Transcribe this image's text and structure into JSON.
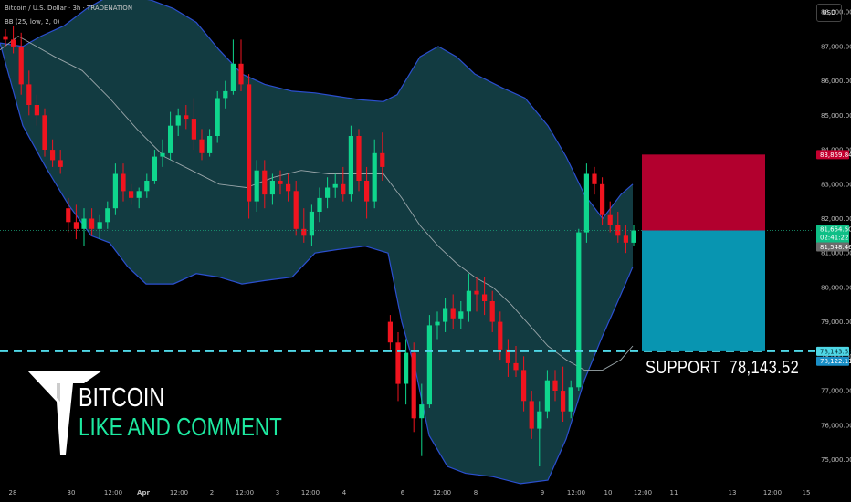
{
  "header": {
    "title": "Bitcoin / U.S. Dollar · 3h · TRADENATION",
    "indicator": "BB (25, low, 2, 0)"
  },
  "currency_button": "USD",
  "chart_data": {
    "type": "candlestick",
    "y_ticks": [
      75000,
      76000,
      77000,
      78000,
      79000,
      80000,
      81000,
      82000,
      83000,
      84000,
      85000,
      86000,
      87000,
      88000
    ],
    "y_tick_labels": [
      "75,000.00",
      "76,000.00",
      "77,000.00",
      "78,000.00",
      "79,000.00",
      "80,000.00",
      "81,000.00",
      "82,000.00",
      "83,000.00",
      "84,000.00",
      "85,000.00",
      "86,000.00",
      "87,000.00",
      "88,000.00"
    ],
    "ylim": [
      74350,
      88350
    ],
    "x_tick_labels": [
      "28",
      "30",
      "12:00",
      "Apr",
      "12:00",
      "2",
      "12:00",
      "3",
      "12:00",
      "4",
      "6",
      "12:00",
      "8",
      "9",
      "12:00",
      "10",
      "12:00",
      "11",
      "13",
      "12:00",
      "15"
    ],
    "candles": [
      [
        87300,
        87500,
        87000,
        87200
      ],
      [
        87200,
        87600,
        86800,
        87000
      ],
      [
        87000,
        87400,
        85600,
        85900
      ],
      [
        85900,
        86300,
        85000,
        85300
      ],
      [
        85300,
        85600,
        84700,
        85000
      ],
      [
        85000,
        85200,
        83800,
        84000
      ],
      [
        84000,
        84300,
        83500,
        83700
      ],
      [
        83700,
        84000,
        83300,
        83500
      ],
      [
        82300,
        82600,
        81600,
        81900
      ],
      [
        81900,
        82400,
        81400,
        81700
      ],
      [
        81700,
        82300,
        81200,
        82000
      ],
      [
        82000,
        82300,
        81500,
        81700
      ],
      [
        81700,
        82100,
        81400,
        81900
      ],
      [
        81900,
        82500,
        81700,
        82300
      ],
      [
        82300,
        83600,
        82100,
        83300
      ],
      [
        83300,
        83600,
        82500,
        82800
      ],
      [
        82800,
        83000,
        82400,
        82600
      ],
      [
        82600,
        82900,
        82300,
        82800
      ],
      [
        82800,
        83300,
        82600,
        83100
      ],
      [
        83100,
        84000,
        83000,
        83800
      ],
      [
        83800,
        84300,
        83500,
        83900
      ],
      [
        83900,
        85100,
        83700,
        84700
      ],
      [
        84700,
        85200,
        84400,
        85000
      ],
      [
        85000,
        85300,
        84600,
        84900
      ],
      [
        84900,
        85500,
        84000,
        84300
      ],
      [
        84300,
        84600,
        83700,
        83900
      ],
      [
        83900,
        84600,
        83800,
        84400
      ],
      [
        84400,
        85700,
        84200,
        85500
      ],
      [
        85500,
        86000,
        85200,
        85700
      ],
      [
        85700,
        87200,
        85600,
        86500
      ],
      [
        86500,
        87200,
        85700,
        85900
      ],
      [
        85900,
        86200,
        82000,
        82500
      ],
      [
        82500,
        83700,
        82200,
        83400
      ],
      [
        83400,
        83700,
        82300,
        82700
      ],
      [
        82700,
        83300,
        82400,
        83100
      ],
      [
        83100,
        83400,
        82700,
        83000
      ],
      [
        83000,
        83300,
        82500,
        82800
      ],
      [
        82800,
        83100,
        81500,
        81700
      ],
      [
        81700,
        82300,
        81300,
        81500
      ],
      [
        81500,
        82400,
        81200,
        82200
      ],
      [
        82200,
        82900,
        81900,
        82600
      ],
      [
        82600,
        83200,
        82300,
        82900
      ],
      [
        82900,
        83300,
        82600,
        83000
      ],
      [
        83000,
        83500,
        82500,
        82700
      ],
      [
        82700,
        84700,
        82500,
        84400
      ],
      [
        84400,
        84600,
        82800,
        83100
      ],
      [
        83100,
        83500,
        82000,
        82500
      ],
      [
        82500,
        84300,
        82300,
        83900
      ],
      [
        83900,
        84500,
        83100,
        83500
      ],
      [
        79000,
        79200,
        78200,
        78400
      ],
      [
        78400,
        78700,
        76700,
        77200
      ],
      [
        77200,
        78500,
        76600,
        78100
      ],
      [
        78100,
        78400,
        75800,
        76200
      ],
      [
        76200,
        77200,
        75100,
        76600
      ],
      [
        76600,
        79200,
        76500,
        78900
      ],
      [
        78900,
        79300,
        78500,
        79000
      ],
      [
        79000,
        79700,
        78700,
        79400
      ],
      [
        79400,
        79800,
        78800,
        79100
      ],
      [
        79100,
        79600,
        78800,
        79300
      ],
      [
        79300,
        80400,
        79000,
        79900
      ],
      [
        79900,
        80300,
        79300,
        79800
      ],
      [
        79800,
        80300,
        79200,
        79600
      ],
      [
        79600,
        79900,
        78700,
        79000
      ],
      [
        79000,
        79300,
        77900,
        78200
      ],
      [
        78200,
        78500,
        77400,
        77800
      ],
      [
        77800,
        78300,
        77400,
        77600
      ],
      [
        77600,
        78000,
        76400,
        76700
      ],
      [
        76700,
        77000,
        75600,
        75900
      ],
      [
        75900,
        76700,
        74800,
        76400
      ],
      [
        76400,
        77600,
        76200,
        77300
      ],
      [
        77300,
        77600,
        76700,
        77000
      ],
      [
        77000,
        77700,
        76100,
        76400
      ],
      [
        76400,
        77300,
        76200,
        77100
      ],
      [
        77100,
        81700,
        77000,
        81600
      ],
      [
        81600,
        83600,
        81300,
        83300
      ],
      [
        83300,
        83500,
        82700,
        83000
      ],
      [
        83000,
        83200,
        81800,
        82100
      ],
      [
        82100,
        82500,
        81600,
        81800
      ],
      [
        81800,
        82200,
        81300,
        81500
      ],
      [
        81500,
        81800,
        81000,
        81300
      ],
      [
        81300,
        81800,
        81200,
        81654.5
      ]
    ],
    "bollinger": {
      "upper_pts": [
        [
          0,
          87100
        ],
        [
          25,
          87000
        ],
        [
          45,
          87300
        ],
        [
          70,
          87600
        ],
        [
          95,
          88100
        ],
        [
          115,
          88400
        ],
        [
          140,
          88450
        ],
        [
          165,
          88350
        ],
        [
          190,
          88100
        ],
        [
          215,
          87700
        ],
        [
          240,
          86900
        ],
        [
          265,
          86200
        ],
        [
          290,
          85900
        ],
        [
          320,
          85700
        ],
        [
          345,
          85650
        ],
        [
          370,
          85550
        ],
        [
          395,
          85450
        ],
        [
          420,
          85400
        ],
        [
          435,
          85600
        ],
        [
          460,
          86700
        ],
        [
          480,
          87000
        ],
        [
          500,
          86700
        ],
        [
          520,
          86200
        ],
        [
          550,
          85800
        ],
        [
          575,
          85500
        ],
        [
          600,
          84700
        ],
        [
          620,
          83800
        ],
        [
          640,
          82700
        ],
        [
          660,
          82000
        ],
        [
          680,
          82700
        ],
        [
          693,
          83000
        ]
      ],
      "middle_pts": [
        [
          0,
          86900
        ],
        [
          20,
          87300
        ],
        [
          40,
          87000
        ],
        [
          60,
          86700
        ],
        [
          90,
          86300
        ],
        [
          120,
          85500
        ],
        [
          150,
          84600
        ],
        [
          180,
          83800
        ],
        [
          210,
          83400
        ],
        [
          240,
          83000
        ],
        [
          270,
          82900
        ],
        [
          300,
          83200
        ],
        [
          330,
          83400
        ],
        [
          360,
          83300
        ],
        [
          390,
          83300
        ],
        [
          420,
          83300
        ],
        [
          440,
          82600
        ],
        [
          460,
          81800
        ],
        [
          480,
          81200
        ],
        [
          500,
          80700
        ],
        [
          520,
          80300
        ],
        [
          540,
          80000
        ],
        [
          560,
          79500
        ],
        [
          580,
          78900
        ],
        [
          600,
          78300
        ],
        [
          620,
          77900
        ],
        [
          640,
          77600
        ],
        [
          660,
          77600
        ],
        [
          680,
          77900
        ],
        [
          693,
          78300
        ]
      ],
      "lower_pts": [
        [
          0,
          87100
        ],
        [
          25,
          84700
        ],
        [
          50,
          83500
        ],
        [
          75,
          82400
        ],
        [
          100,
          81500
        ],
        [
          120,
          81300
        ],
        [
          140,
          80600
        ],
        [
          160,
          80100
        ],
        [
          190,
          80100
        ],
        [
          215,
          80400
        ],
        [
          240,
          80300
        ],
        [
          265,
          80100
        ],
        [
          290,
          80200
        ],
        [
          320,
          80300
        ],
        [
          345,
          81000
        ],
        [
          370,
          81100
        ],
        [
          400,
          81200
        ],
        [
          425,
          81000
        ],
        [
          440,
          79000
        ],
        [
          455,
          77600
        ],
        [
          470,
          75700
        ],
        [
          490,
          74800
        ],
        [
          510,
          74600
        ],
        [
          540,
          74500
        ],
        [
          570,
          74300
        ],
        [
          600,
          74400
        ],
        [
          620,
          75600
        ],
        [
          640,
          77300
        ],
        [
          660,
          78600
        ],
        [
          680,
          79800
        ],
        [
          693,
          80600
        ]
      ]
    },
    "price_line": 81654.5,
    "support_line": 78143.52,
    "position_box": {
      "stop": 83859.84,
      "entry": 81654.5,
      "target": 78143.52
    },
    "price_labels": {
      "stop": "83,859.84",
      "current": "81,654.50",
      "countdown": "02:41:22",
      "gray": "81,548.46",
      "support": "78,143.52",
      "support2": "78,122.11"
    },
    "price_values": {
      "gray": 81548.46,
      "support2": 78122.11
    }
  },
  "branding": {
    "line1": "BITCOIN",
    "line2": "LIKE AND COMMENT"
  },
  "support_label": "SUPPORT  78,143.52",
  "colors": {
    "bull": "#0fd68d",
    "bear": "#f0141f",
    "band_fill": "#123b41",
    "band_line": "#2b4fd0",
    "middle": "#9aa6aa",
    "support": "#4fd7e6",
    "stop_box": "#b2002e",
    "target_box": "#0895b1",
    "brand_green": "#1de9a0"
  }
}
